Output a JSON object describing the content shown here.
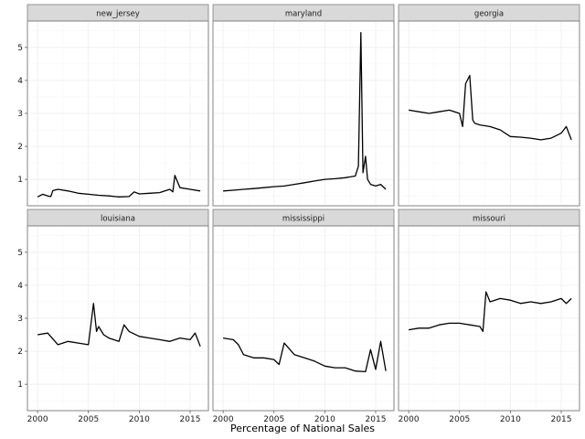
{
  "chart_data": {
    "type": "line",
    "xlabel": "Percentage of National Sales",
    "ylabel": "",
    "xlim": [
      1999.0,
      2016.8
    ],
    "ylim": [
      0.2,
      5.8
    ],
    "x_ticks": [
      2000,
      2005,
      2010,
      2015
    ],
    "y_ticks": [
      1,
      2,
      3,
      4,
      5
    ],
    "grid": true,
    "facets": [
      {
        "name": "new_jersey",
        "x": [
          2000.0,
          2000.5,
          2001.0,
          2001.3,
          2001.5,
          2002.0,
          2003.0,
          2004.0,
          2005.0,
          2006.0,
          2007.0,
          2008.0,
          2009.0,
          2009.5,
          2010.0,
          2011.0,
          2012.0,
          2013.0,
          2013.3,
          2013.5,
          2013.8,
          2014.0,
          2015.0,
          2016.0
        ],
        "values": [
          0.47,
          0.55,
          0.5,
          0.48,
          0.66,
          0.7,
          0.65,
          0.58,
          0.55,
          0.52,
          0.5,
          0.47,
          0.48,
          0.62,
          0.56,
          0.58,
          0.6,
          0.7,
          0.62,
          1.12,
          0.9,
          0.75,
          0.7,
          0.65
        ]
      },
      {
        "name": "maryland",
        "x": [
          2000.0,
          2001.0,
          2002.0,
          2003.0,
          2004.0,
          2005.0,
          2006.0,
          2007.0,
          2008.0,
          2009.0,
          2010.0,
          2011.0,
          2012.0,
          2013.0,
          2013.3,
          2013.55,
          2013.75,
          2014.0,
          2014.2,
          2014.5,
          2015.0,
          2015.5,
          2016.0
        ],
        "values": [
          0.65,
          0.67,
          0.7,
          0.72,
          0.75,
          0.78,
          0.8,
          0.85,
          0.9,
          0.95,
          1.0,
          1.02,
          1.05,
          1.1,
          1.4,
          5.45,
          1.2,
          1.7,
          1.0,
          0.85,
          0.8,
          0.85,
          0.7
        ]
      },
      {
        "name": "georgia",
        "x": [
          2000.0,
          2001.0,
          2002.0,
          2003.0,
          2004.0,
          2005.0,
          2005.3,
          2005.6,
          2006.0,
          2006.3,
          2006.5,
          2007.0,
          2008.0,
          2009.0,
          2010.0,
          2011.0,
          2012.0,
          2013.0,
          2014.0,
          2015.0,
          2015.5,
          2016.0
        ],
        "values": [
          3.1,
          3.05,
          3.0,
          3.05,
          3.1,
          3.0,
          2.6,
          3.9,
          4.15,
          2.8,
          2.7,
          2.65,
          2.6,
          2.5,
          2.3,
          2.28,
          2.25,
          2.2,
          2.25,
          2.4,
          2.6,
          2.2
        ]
      },
      {
        "name": "louisiana",
        "x": [
          2000.0,
          2001.0,
          2002.0,
          2003.0,
          2004.0,
          2005.0,
          2005.5,
          2005.8,
          2006.0,
          2006.5,
          2007.0,
          2008.0,
          2008.5,
          2009.0,
          2010.0,
          2011.0,
          2012.0,
          2013.0,
          2014.0,
          2015.0,
          2015.5,
          2016.0
        ],
        "values": [
          2.5,
          2.55,
          2.2,
          2.3,
          2.25,
          2.2,
          3.45,
          2.6,
          2.75,
          2.5,
          2.4,
          2.3,
          2.8,
          2.6,
          2.45,
          2.4,
          2.35,
          2.3,
          2.4,
          2.35,
          2.55,
          2.15
        ]
      },
      {
        "name": "mississippi",
        "x": [
          2000.0,
          2001.0,
          2001.5,
          2002.0,
          2003.0,
          2004.0,
          2005.0,
          2005.5,
          2006.0,
          2007.0,
          2008.0,
          2009.0,
          2010.0,
          2011.0,
          2012.0,
          2013.0,
          2014.0,
          2014.5,
          2015.0,
          2015.5,
          2016.0
        ],
        "values": [
          2.4,
          2.35,
          2.2,
          1.9,
          1.8,
          1.8,
          1.75,
          1.6,
          2.25,
          1.9,
          1.8,
          1.7,
          1.55,
          1.5,
          1.5,
          1.4,
          1.38,
          2.05,
          1.45,
          2.3,
          1.4
        ]
      },
      {
        "name": "missouri",
        "x": [
          2000.0,
          2001.0,
          2002.0,
          2003.0,
          2004.0,
          2005.0,
          2006.0,
          2007.0,
          2007.3,
          2007.6,
          2008.0,
          2009.0,
          2010.0,
          2011.0,
          2012.0,
          2013.0,
          2014.0,
          2015.0,
          2015.5,
          2016.0
        ],
        "values": [
          2.65,
          2.7,
          2.7,
          2.8,
          2.85,
          2.85,
          2.8,
          2.75,
          2.6,
          3.8,
          3.5,
          3.6,
          3.55,
          3.45,
          3.5,
          3.45,
          3.5,
          3.6,
          3.45,
          3.6
        ]
      }
    ]
  }
}
